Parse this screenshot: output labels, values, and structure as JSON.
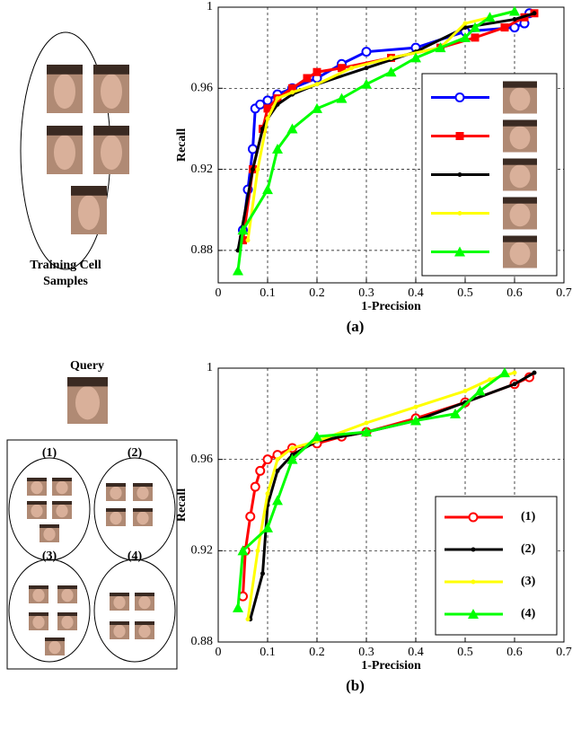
{
  "chart_data": [
    {
      "type": "line",
      "caption": "(a)",
      "xlabel": "1-Precision",
      "ylabel": "Recall",
      "xlim": [
        0,
        0.7
      ],
      "xticks": [
        0,
        0.1,
        0.2,
        0.3,
        0.4,
        0.5,
        0.6,
        0.7
      ],
      "ylim": [
        0.864,
        1
      ],
      "yticks": [
        0.88,
        0.92,
        0.96,
        1
      ],
      "grid": true,
      "legend": "lower right",
      "series": [
        {
          "color": "#0000ff",
          "marker": "circle",
          "x": [
            0.05,
            0.06,
            0.07,
            0.075,
            0.085,
            0.1,
            0.12,
            0.15,
            0.2,
            0.25,
            0.3,
            0.4,
            0.5,
            0.6,
            0.62,
            0.63
          ],
          "values": [
            0.89,
            0.91,
            0.93,
            0.95,
            0.952,
            0.954,
            0.957,
            0.96,
            0.965,
            0.972,
            0.978,
            0.98,
            0.988,
            0.99,
            0.992,
            0.997
          ]
        },
        {
          "color": "#ff0000",
          "marker": "square",
          "x": [
            0.05,
            0.07,
            0.09,
            0.1,
            0.12,
            0.15,
            0.18,
            0.2,
            0.25,
            0.35,
            0.45,
            0.52,
            0.58,
            0.62,
            0.64
          ],
          "values": [
            0.885,
            0.92,
            0.94,
            0.95,
            0.955,
            0.96,
            0.965,
            0.968,
            0.97,
            0.975,
            0.98,
            0.985,
            0.99,
            0.995,
            0.997
          ]
        },
        {
          "color": "#000000",
          "marker": "dot",
          "x": [
            0.04,
            0.07,
            0.09,
            0.1,
            0.12,
            0.15,
            0.2,
            0.3,
            0.4,
            0.5,
            0.6,
            0.64
          ],
          "values": [
            0.88,
            0.92,
            0.94,
            0.945,
            0.952,
            0.957,
            0.962,
            0.97,
            0.978,
            0.99,
            0.994,
            0.997
          ]
        },
        {
          "color": "#ffff00",
          "marker": "dot",
          "x": [
            0.06,
            0.08,
            0.1,
            0.12,
            0.15,
            0.2,
            0.27,
            0.35,
            0.45,
            0.5,
            0.55,
            0.6
          ],
          "values": [
            0.885,
            0.92,
            0.945,
            0.955,
            0.958,
            0.962,
            0.97,
            0.975,
            0.98,
            0.992,
            0.995,
            0.998
          ]
        },
        {
          "color": "#00ff00",
          "marker": "triangle",
          "x": [
            0.04,
            0.05,
            0.1,
            0.12,
            0.15,
            0.2,
            0.25,
            0.3,
            0.35,
            0.4,
            0.45,
            0.5,
            0.52,
            0.55,
            0.6
          ],
          "values": [
            0.87,
            0.89,
            0.91,
            0.93,
            0.94,
            0.95,
            0.955,
            0.962,
            0.968,
            0.975,
            0.98,
            0.985,
            0.99,
            0.995,
            0.998
          ]
        }
      ]
    },
    {
      "type": "line",
      "caption": "(b)",
      "xlabel": "1-Precision",
      "ylabel": "Recall",
      "xlim": [
        0,
        0.7
      ],
      "xticks": [
        0,
        0.1,
        0.2,
        0.3,
        0.4,
        0.5,
        0.6,
        0.7
      ],
      "ylim": [
        0.88,
        1
      ],
      "yticks": [
        0.88,
        0.92,
        0.96,
        1
      ],
      "grid": true,
      "legend": "lower right",
      "series": [
        {
          "name": "(1)",
          "color": "#ff0000",
          "marker": "circle",
          "x": [
            0.05,
            0.055,
            0.065,
            0.075,
            0.085,
            0.1,
            0.12,
            0.15,
            0.2,
            0.25,
            0.3,
            0.4,
            0.5,
            0.6,
            0.63
          ],
          "values": [
            0.9,
            0.92,
            0.935,
            0.948,
            0.955,
            0.96,
            0.962,
            0.965,
            0.967,
            0.97,
            0.972,
            0.978,
            0.985,
            0.993,
            0.996
          ]
        },
        {
          "name": "(2)",
          "color": "#000000",
          "marker": "dot",
          "x": [
            0.065,
            0.09,
            0.1,
            0.12,
            0.15,
            0.2,
            0.3,
            0.4,
            0.5,
            0.6,
            0.64
          ],
          "values": [
            0.89,
            0.91,
            0.94,
            0.955,
            0.962,
            0.968,
            0.972,
            0.977,
            0.985,
            0.993,
            0.998
          ]
        },
        {
          "name": "(3)",
          "color": "#ffff00",
          "marker": "dot",
          "x": [
            0.06,
            0.08,
            0.1,
            0.12,
            0.15,
            0.2,
            0.3,
            0.4,
            0.5,
            0.55,
            0.6
          ],
          "values": [
            0.89,
            0.92,
            0.945,
            0.96,
            0.965,
            0.968,
            0.976,
            0.983,
            0.99,
            0.995,
            0.998
          ]
        },
        {
          "name": "(4)",
          "color": "#00ff00",
          "marker": "triangle",
          "x": [
            0.04,
            0.05,
            0.1,
            0.12,
            0.15,
            0.2,
            0.3,
            0.4,
            0.48,
            0.53,
            0.58
          ],
          "values": [
            0.895,
            0.92,
            0.93,
            0.942,
            0.96,
            0.97,
            0.972,
            0.977,
            0.98,
            0.99,
            0.998
          ]
        }
      ]
    }
  ],
  "panels": {
    "training_caption": [
      "Training Cell",
      "Samples"
    ],
    "query_label": "Query",
    "groups": [
      "(1)",
      "(2)",
      "(3)",
      "(4)"
    ]
  }
}
